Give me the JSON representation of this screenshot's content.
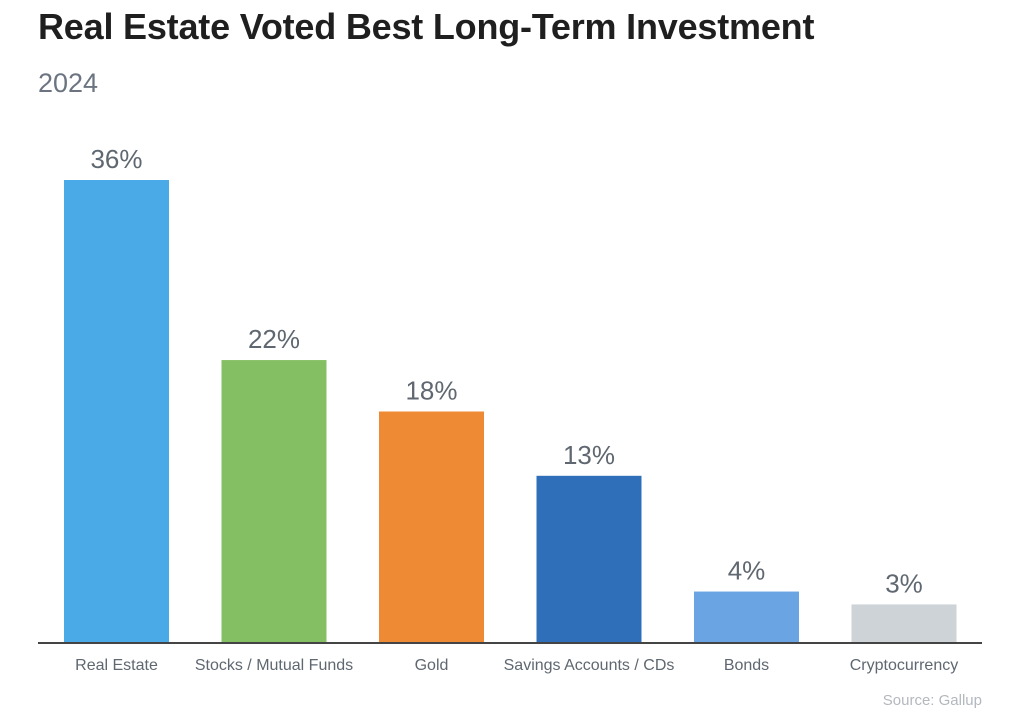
{
  "chart_data": {
    "type": "bar",
    "title": "Real Estate Voted Best Long-Term Investment",
    "subtitle": "2024",
    "categories": [
      "Real Estate",
      "Stocks / Mutual Funds",
      "Gold",
      "Savings Accounts / CDs",
      "Bonds",
      "Cryptocurrency"
    ],
    "values": [
      36,
      22,
      18,
      13,
      4,
      3
    ],
    "value_labels": [
      "36%",
      "22%",
      "18%",
      "13%",
      "4%",
      "3%"
    ],
    "colors": [
      "#4aa9e7",
      "#85bf63",
      "#ef8a34",
      "#2f6fba",
      "#6aa4e3",
      "#ced3d7"
    ],
    "xlabel": "",
    "ylabel": "",
    "ylim": [
      0,
      36
    ],
    "grid": false,
    "source": "Source: Gallup"
  },
  "style": {
    "label_color": "#5f6770",
    "axis_color": "#444444",
    "category_color": "#5f6770"
  }
}
